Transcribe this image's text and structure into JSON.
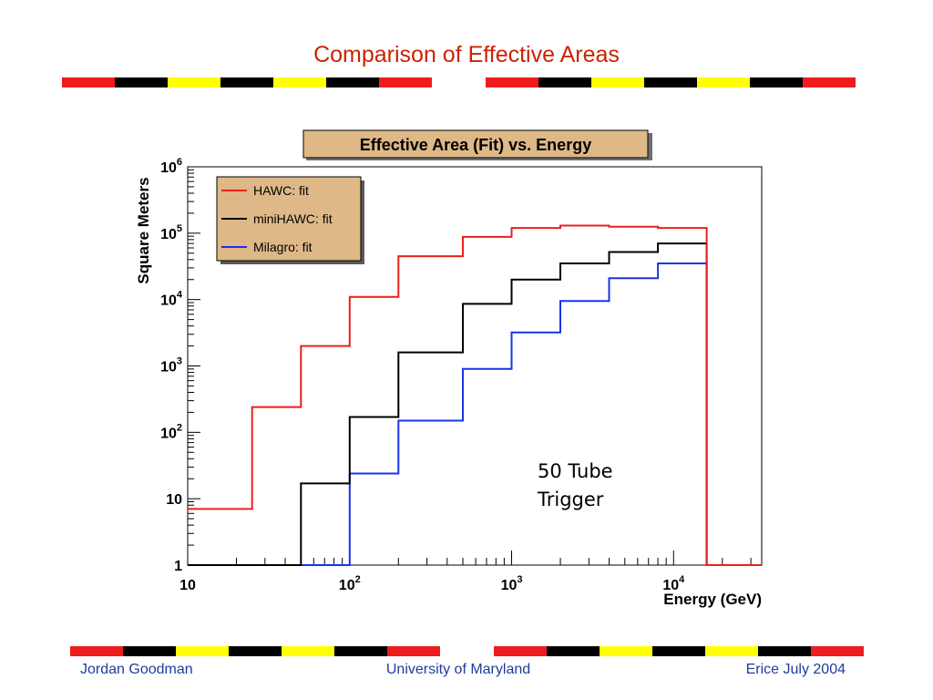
{
  "slide": {
    "title": "Comparison of Effective Areas",
    "footer_left": "Jordan Goodman",
    "footer_center": "University of Maryland",
    "footer_right": "Erice July 2004"
  },
  "colors": {
    "title": "#cc2200",
    "footer_text": "#1f3c9e",
    "band_red": "#ee1c1c",
    "band_black": "#000000",
    "band_yellow": "#ffff00",
    "plot_title_bg": "#deb887",
    "legend_bg": "#deb887"
  },
  "band_pattern": [
    "red",
    "black",
    "yellow",
    "black",
    "yellow",
    "black",
    "red",
    "white",
    "red",
    "black",
    "yellow",
    "black",
    "yellow",
    "black",
    "red"
  ],
  "chart_data": {
    "type": "line",
    "step": true,
    "title": "Effective Area (Fit) vs. Energy",
    "xlabel": "Energy (GeV)",
    "ylabel": "Square Meters",
    "x_scale": "log",
    "y_scale": "log",
    "xlim": [
      10,
      35000
    ],
    "ylim": [
      1,
      1000000
    ],
    "x_ticks": [
      {
        "value": 10,
        "base": "10",
        "exp": ""
      },
      {
        "value": 100,
        "base": "10",
        "exp": "2"
      },
      {
        "value": 1000,
        "base": "10",
        "exp": "3"
      },
      {
        "value": 10000,
        "base": "10",
        "exp": "4"
      }
    ],
    "y_ticks": [
      {
        "value": 1,
        "base": "1",
        "exp": ""
      },
      {
        "value": 10,
        "base": "10",
        "exp": ""
      },
      {
        "value": 100,
        "base": "10",
        "exp": "2"
      },
      {
        "value": 1000,
        "base": "10",
        "exp": "3"
      },
      {
        "value": 10000,
        "base": "10",
        "exp": "4"
      },
      {
        "value": 100000,
        "base": "10",
        "exp": "5"
      },
      {
        "value": 1000000,
        "base": "10",
        "exp": "6"
      }
    ],
    "bin_edges": [
      10,
      25,
      50,
      100,
      200,
      500,
      1000,
      2000,
      4000,
      8000,
      16000,
      35000
    ],
    "series": [
      {
        "name": "HAWC: fit",
        "color": "#e8211c",
        "values": [
          7,
          240,
          2000,
          11000,
          45000,
          88000,
          120000,
          130000,
          125000,
          120000,
          1
        ]
      },
      {
        "name": "miniHAWC: fit",
        "color": "#000000",
        "values": [
          1,
          1,
          17,
          170,
          1600,
          8600,
          20000,
          35000,
          52000,
          70000,
          1
        ]
      },
      {
        "name": "Milagro: fit",
        "color": "#1a33e6",
        "values": [
          1,
          1,
          1,
          24,
          150,
          900,
          3200,
          9500,
          21000,
          35000,
          1
        ]
      }
    ],
    "annotation": "50 Tube Trigger",
    "legend_position": "top-left",
    "grid": false
  }
}
